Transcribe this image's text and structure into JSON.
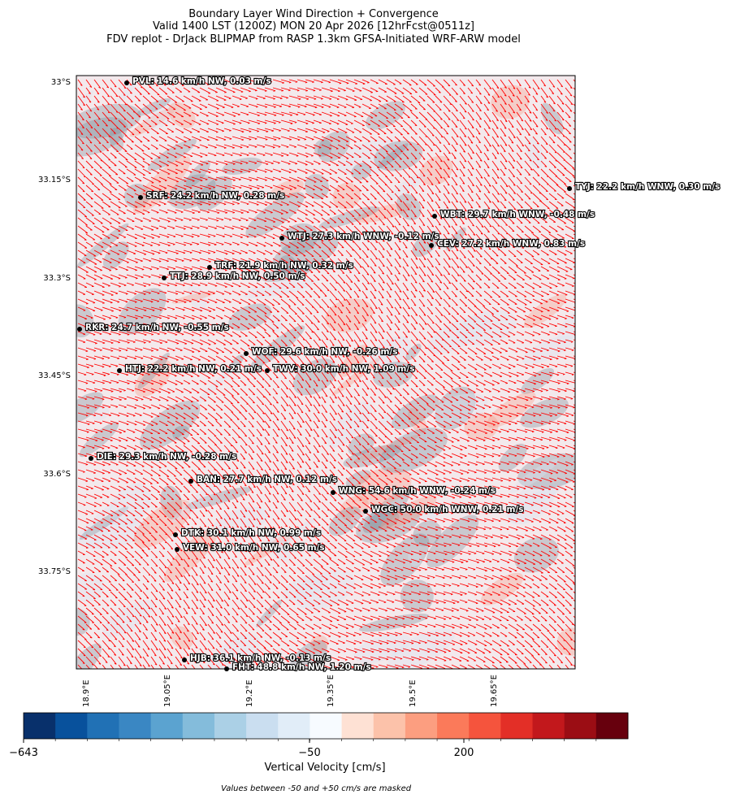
{
  "title": [
    "Boundary Layer Wind Direction + Convergence",
    "Valid 1400 LST (1200Z) MON 20 Apr 2026 [12hrFcst@0511z]",
    "FDV replot - DrJack BLIPMAP from RASP 1.3km GFSA-Initiated WRF-ARW model"
  ],
  "lat_ticks": [
    "33°S",
    "33.15°S",
    "33.3°S",
    "33.45°S",
    "33.6°S",
    "33.75°S"
  ],
  "lon_ticks": [
    "18.9°E",
    "19.05°E",
    "19.2°E",
    "19.35°E",
    "19.5°E",
    "19.65°E"
  ],
  "stations": [
    "PVL: 14.6 km/h NW, 0.03 m/s",
    "TYJ: 22.2 km/h WNW, 0.30 m/s",
    "SRF: 24.2 km/h NW, 0.28 m/s",
    "WBT: 29.7 km/h WNW, -0.48 m/s",
    "WTJ: 27.3 km/h WNW, -0.12 m/s",
    "CEV: 27.2 km/h WNW, 0.83 m/s",
    "TRF: 21.9 km/h NW, 0.32 m/s",
    "TTJ: 28.9 km/h NW, 0.50 m/s",
    "RKR: 24.7 km/h NW, -0.55 m/s",
    "WOF: 29.6 km/h NW, -0.26 m/s",
    "HTJ: 22.2 km/h NW, 0.21 m/s",
    "TWV: 30.0 km/h NW, 1.09 m/s",
    "DIE: 29.3 km/h NW, -0.28 m/s",
    "BAN: 27.7 km/h NW, 0.12 m/s",
    "WNG: 54.6 km/h WNW, -0.24 m/s",
    "WGC: 50.0 km/h WNW, 0.21 m/s",
    "DTK: 30.1 km/h NW, 0.99 m/s",
    "VEW: 31.0 km/h NW, 0.65 m/s",
    "HJB: 36.1 km/h NW, -0.13 m/s",
    "FHT: 48.8 km/h NW, 1.20 m/s"
  ],
  "colorbar": {
    "label": "Vertical Velocity [cm/s]",
    "ticks": [
      "−643",
      "−50",
      "200"
    ],
    "colors": [
      "#08306b",
      "#08519c",
      "#2171b5",
      "#3a87c3",
      "#5ba3d0",
      "#84bcdb",
      "#abd0e6",
      "#cadef0",
      "#e1edf8",
      "#f7fbff",
      "#fee1d4",
      "#fcc2aa",
      "#fc9e80",
      "#fb7a5a",
      "#f5543d",
      "#e32f27",
      "#c2181c",
      "#9b0d14",
      "#67000d"
    ]
  },
  "note": "Values between -50 and +50 cm/s are masked"
}
